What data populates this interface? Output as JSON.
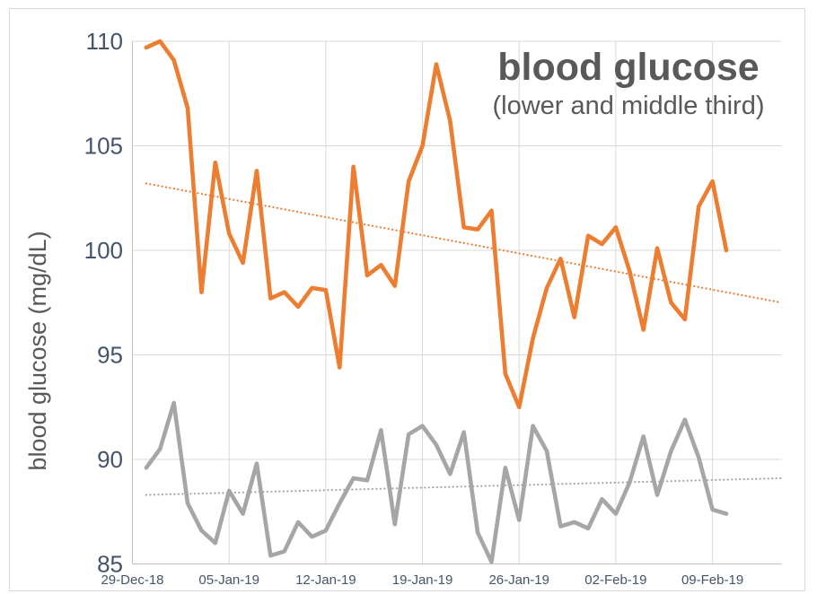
{
  "chart_data": {
    "type": "line",
    "title": "blood glucose",
    "subtitle": "(lower and middle third)",
    "ylabel": "blood glucose (mg/dL)",
    "xlabel": "",
    "x_tick_labels": [
      "29-Dec-18",
      "05-Jan-19",
      "12-Jan-19",
      "19-Jan-19",
      "26-Jan-19",
      "02-Feb-19",
      "09-Feb-19"
    ],
    "x_tick_days": [
      0,
      7,
      14,
      21,
      28,
      35,
      42
    ],
    "x_axis_day_range": [
      0,
      47
    ],
    "ylim": [
      85,
      110
    ],
    "y_ticks": [
      85,
      90,
      95,
      100,
      105,
      110
    ],
    "grid": true,
    "legend_position": "none",
    "series": [
      {
        "name": "middle third",
        "color": "#ED7D31",
        "start_day": 1,
        "values": [
          109.7,
          110.0,
          109.1,
          106.8,
          98.0,
          104.2,
          100.8,
          99.4,
          103.8,
          97.7,
          98.0,
          97.3,
          98.2,
          98.1,
          94.4,
          104.0,
          98.8,
          99.3,
          98.3,
          103.3,
          105.0,
          108.9,
          106.2,
          101.1,
          101.0,
          101.9,
          94.1,
          92.5,
          95.8,
          98.2,
          99.6,
          96.8,
          100.7,
          100.3,
          101.1,
          99.0,
          96.2,
          100.1,
          97.5,
          96.7,
          102.1,
          103.3,
          100.0
        ]
      },
      {
        "name": "lower third",
        "color": "#A6A6A6",
        "start_day": 1,
        "values": [
          89.6,
          90.5,
          92.7,
          87.9,
          86.6,
          86.0,
          88.5,
          87.4,
          89.8,
          85.4,
          85.6,
          87.0,
          86.3,
          86.6,
          87.9,
          89.1,
          89.0,
          91.4,
          86.9,
          91.2,
          91.6,
          90.7,
          89.3,
          91.3,
          86.5,
          85.1,
          89.6,
          87.1,
          91.6,
          90.4,
          86.8,
          87.0,
          86.7,
          88.1,
          87.4,
          88.9,
          91.1,
          88.3,
          90.4,
          91.9,
          90.1,
          87.6,
          87.4
        ]
      }
    ],
    "trendlines": [
      {
        "series": "middle third",
        "style": "dotted",
        "color": "#ED7D31",
        "points_day_value": [
          [
            1,
            103.2
          ],
          [
            47,
            97.5
          ]
        ]
      },
      {
        "series": "lower third",
        "style": "dotted",
        "color": "#A6A6A6",
        "points_day_value": [
          [
            1,
            88.3
          ],
          [
            47,
            89.1
          ]
        ]
      }
    ],
    "colors": {
      "gridline": "#D9D9D9",
      "axis_line": "#C0C0C0",
      "chart_border": "#D9D9D9",
      "tick_label": "#44546A",
      "title": "#595959",
      "axis_title": "#595959"
    }
  }
}
